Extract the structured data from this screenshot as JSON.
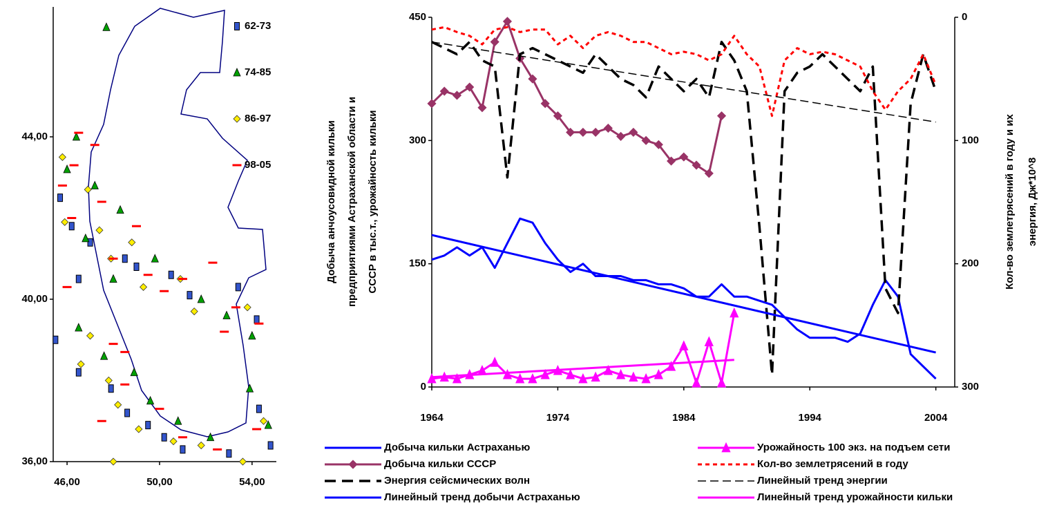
{
  "chart_data": [
    {
      "type": "scatter",
      "xlim": [
        45.4,
        55.05
      ],
      "ylim": [
        36,
        47.2
      ],
      "xticks": [
        {
          "value": 46,
          "label": "46,00"
        },
        {
          "value": 50,
          "label": "50,00"
        },
        {
          "value": 54,
          "label": "54,00"
        }
      ],
      "yticks": [
        {
          "value": 36,
          "label": "36,00"
        },
        {
          "value": 40,
          "label": "40,00"
        },
        {
          "value": 44,
          "label": "44,00"
        }
      ],
      "legend": "upper right",
      "series": [
        {
          "name": "62-73",
          "color": "#3355cc",
          "marker": "square",
          "x": [
            45.7,
            46.2,
            47.0,
            46.5,
            48.5,
            49.0,
            50.5,
            51.3,
            53.4,
            54.2,
            45.5,
            46.5,
            47.9,
            48.6,
            49.5,
            50.2,
            51.0,
            53.0,
            54.8,
            54.3
          ],
          "y": [
            42.5,
            41.8,
            41.4,
            40.5,
            41.0,
            40.8,
            40.6,
            40.1,
            40.3,
            39.5,
            39.0,
            38.2,
            37.8,
            37.2,
            36.9,
            36.6,
            36.3,
            36.2,
            36.4,
            37.3
          ]
        },
        {
          "name": "74-85",
          "color": "#00a000",
          "marker": "triangle",
          "x": [
            46.4,
            46.0,
            47.2,
            48.3,
            46.8,
            48.0,
            49.8,
            51.8,
            52.9,
            54.0,
            46.5,
            47.6,
            48.9,
            49.6,
            50.8,
            52.2,
            53.9,
            54.7,
            47.7
          ],
          "y": [
            44.0,
            43.2,
            42.8,
            42.2,
            41.5,
            40.5,
            41.0,
            40.0,
            39.6,
            39.1,
            39.3,
            38.6,
            38.2,
            37.5,
            37.0,
            36.6,
            37.8,
            36.9,
            46.7
          ]
        },
        {
          "name": "86-97",
          "color": "#ffee00",
          "marker": "diamond",
          "x": [
            45.8,
            46.9,
            45.9,
            47.4,
            48.8,
            47.9,
            49.3,
            50.9,
            51.5,
            53.8,
            47.0,
            46.6,
            47.8,
            48.2,
            49.1,
            50.6,
            51.8,
            53.6,
            54.5,
            48.0
          ],
          "y": [
            43.5,
            42.7,
            41.9,
            41.7,
            41.4,
            41.0,
            40.3,
            40.5,
            39.7,
            39.8,
            39.1,
            38.4,
            38.0,
            37.4,
            36.8,
            36.5,
            36.4,
            36.0,
            37.0,
            36.0
          ]
        },
        {
          "name": "98-05",
          "color": "#ff0000",
          "marker": "dash",
          "x": [
            46.5,
            47.2,
            46.3,
            45.8,
            47.5,
            46.2,
            49.0,
            48.0,
            49.5,
            50.2,
            51.0,
            52.3,
            53.3,
            54.3,
            52.8,
            46.0,
            48.5,
            48.5,
            50.0,
            51.0,
            52.5,
            54.2,
            48.0,
            47.5
          ],
          "y": [
            44.1,
            43.8,
            43.3,
            42.8,
            42.4,
            42.0,
            41.8,
            41.0,
            40.6,
            40.2,
            40.5,
            40.9,
            39.8,
            39.4,
            39.2,
            40.3,
            38.7,
            37.9,
            37.3,
            36.6,
            36.3,
            36.8,
            38.9,
            37.0
          ]
        }
      ]
    },
    {
      "type": "line",
      "ylabel": [
        "Добыча анчоусовидной кильки",
        "предприятиями Астраханской области и",
        "СССР в тыс.т., урожайность кильки"
      ],
      "y2label": [
        "Кол-во землетрясений в году и их",
        "энергия, Дж*10^8"
      ],
      "xlim": [
        1964,
        2005.5
      ],
      "xticks": [
        1964,
        1974,
        1984,
        1994,
        2004
      ],
      "ylim": [
        0,
        450
      ],
      "yticks": [
        0,
        150,
        300,
        450
      ],
      "y2lim": [
        0,
        300
      ],
      "y2ticks": [
        0,
        100,
        200,
        300
      ],
      "y2_inverted": true,
      "series": [
        {
          "name": "Добыча кильки Астраханью",
          "color": "#0000ff",
          "width": 3,
          "dash": "solid",
          "marker": "none",
          "x": [
            1964,
            1965,
            1966,
            1967,
            1968,
            1969,
            1970,
            1971,
            1972,
            1973,
            1974,
            1975,
            1976,
            1977,
            1978,
            1979,
            1980,
            1981,
            1982,
            1983,
            1984,
            1985,
            1986,
            1987,
            1988,
            1989,
            1990,
            1991,
            1992,
            1993,
            1994,
            1995,
            1996,
            1997,
            1998,
            1999,
            2000,
            2001,
            2002,
            2003,
            2004
          ],
          "values": [
            155,
            160,
            170,
            160,
            170,
            145,
            175,
            205,
            200,
            175,
            155,
            140,
            150,
            135,
            135,
            135,
            130,
            130,
            125,
            125,
            120,
            110,
            110,
            125,
            110,
            110,
            105,
            100,
            85,
            70,
            60,
            60,
            60,
            55,
            65,
            100,
            130,
            110,
            40,
            25,
            10
          ]
        },
        {
          "name": "Добыча кильки СССР",
          "color": "#993366",
          "width": 3,
          "dash": "solid",
          "marker": "diamond",
          "x": [
            1964,
            1965,
            1966,
            1967,
            1968,
            1969,
            1970,
            1971,
            1972,
            1973,
            1974,
            1975,
            1976,
            1977,
            1978,
            1979,
            1980,
            1981,
            1982,
            1983,
            1984,
            1985,
            1986,
            1987
          ],
          "values": [
            345,
            360,
            355,
            365,
            340,
            420,
            445,
            400,
            375,
            345,
            330,
            310,
            310,
            310,
            315,
            305,
            310,
            300,
            295,
            275,
            280,
            270,
            260,
            330
          ]
        },
        {
          "name": "Энергия сейсмических волн",
          "color": "#000000",
          "width": 3.5,
          "dash": "long",
          "marker": "none",
          "axis": "y2",
          "x": [
            1964,
            1965,
            1966,
            1967,
            1968,
            1969,
            1970,
            1971,
            1972,
            1973,
            1974,
            1975,
            1976,
            1977,
            1978,
            1979,
            1980,
            1981,
            1982,
            1983,
            1984,
            1985,
            1986,
            1987,
            1988,
            1989,
            1990,
            1991,
            1992,
            1993,
            1994,
            1995,
            1996,
            1997,
            1998,
            1999,
            2000,
            2001,
            2002,
            2003,
            2004
          ],
          "values": [
            20,
            25,
            30,
            20,
            35,
            40,
            130,
            30,
            25,
            30,
            35,
            40,
            45,
            30,
            40,
            50,
            55,
            65,
            40,
            50,
            60,
            50,
            65,
            20,
            35,
            60,
            170,
            290,
            60,
            45,
            40,
            30,
            40,
            50,
            60,
            40,
            220,
            240,
            70,
            30,
            60
          ]
        },
        {
          "name": "Линейный тренд добычи Астраханью",
          "color": "#0000ff",
          "width": 3,
          "dash": "solid",
          "marker": "none",
          "x": [
            1964,
            2004
          ],
          "values": [
            185,
            42
          ]
        },
        {
          "name": "Урожайность 100 экз. на подъем сети",
          "color": "#ff00ff",
          "width": 3,
          "dash": "solid",
          "marker": "triangle",
          "x": [
            1964,
            1965,
            1966,
            1967,
            1968,
            1969,
            1970,
            1971,
            1972,
            1973,
            1974,
            1975,
            1976,
            1977,
            1978,
            1979,
            1980,
            1981,
            1982,
            1983,
            1984,
            1985,
            1986,
            1987,
            1988
          ],
          "values": [
            10,
            12,
            10,
            15,
            20,
            30,
            15,
            10,
            10,
            15,
            20,
            15,
            10,
            12,
            20,
            15,
            12,
            10,
            15,
            25,
            50,
            5,
            55,
            5,
            90
          ]
        },
        {
          "name": "Кол-во землетрясений в году",
          "color": "#ff0000",
          "width": 3,
          "dash": "dot",
          "marker": "none",
          "axis": "y2",
          "x": [
            1964,
            1965,
            1966,
            1967,
            1968,
            1969,
            1970,
            1971,
            1972,
            1973,
            1974,
            1975,
            1976,
            1977,
            1978,
            1979,
            1980,
            1981,
            1982,
            1983,
            1984,
            1985,
            1986,
            1987,
            1988,
            1989,
            1990,
            1991,
            1992,
            1993,
            1994,
            1995,
            1996,
            1997,
            1998,
            1999,
            2000,
            2001,
            2002,
            2003,
            2004
          ],
          "values": [
            10,
            8,
            12,
            15,
            22,
            10,
            8,
            12,
            10,
            10,
            22,
            15,
            25,
            15,
            12,
            15,
            20,
            20,
            25,
            30,
            28,
            30,
            35,
            30,
            15,
            30,
            40,
            80,
            35,
            25,
            30,
            28,
            30,
            35,
            40,
            60,
            75,
            60,
            50,
            30,
            55
          ]
        },
        {
          "name": "Линейный тренд энергии",
          "color": "#000000",
          "width": 1.5,
          "dash": "short",
          "marker": "none",
          "axis": "y2",
          "x": [
            1964,
            2004
          ],
          "values": [
            20,
            85
          ]
        },
        {
          "name": "Линейный тренд урожайности кильки",
          "color": "#ff00ff",
          "width": 3,
          "dash": "solid",
          "marker": "none",
          "x": [
            1964,
            1988
          ],
          "values": [
            12,
            33
          ]
        }
      ]
    }
  ]
}
